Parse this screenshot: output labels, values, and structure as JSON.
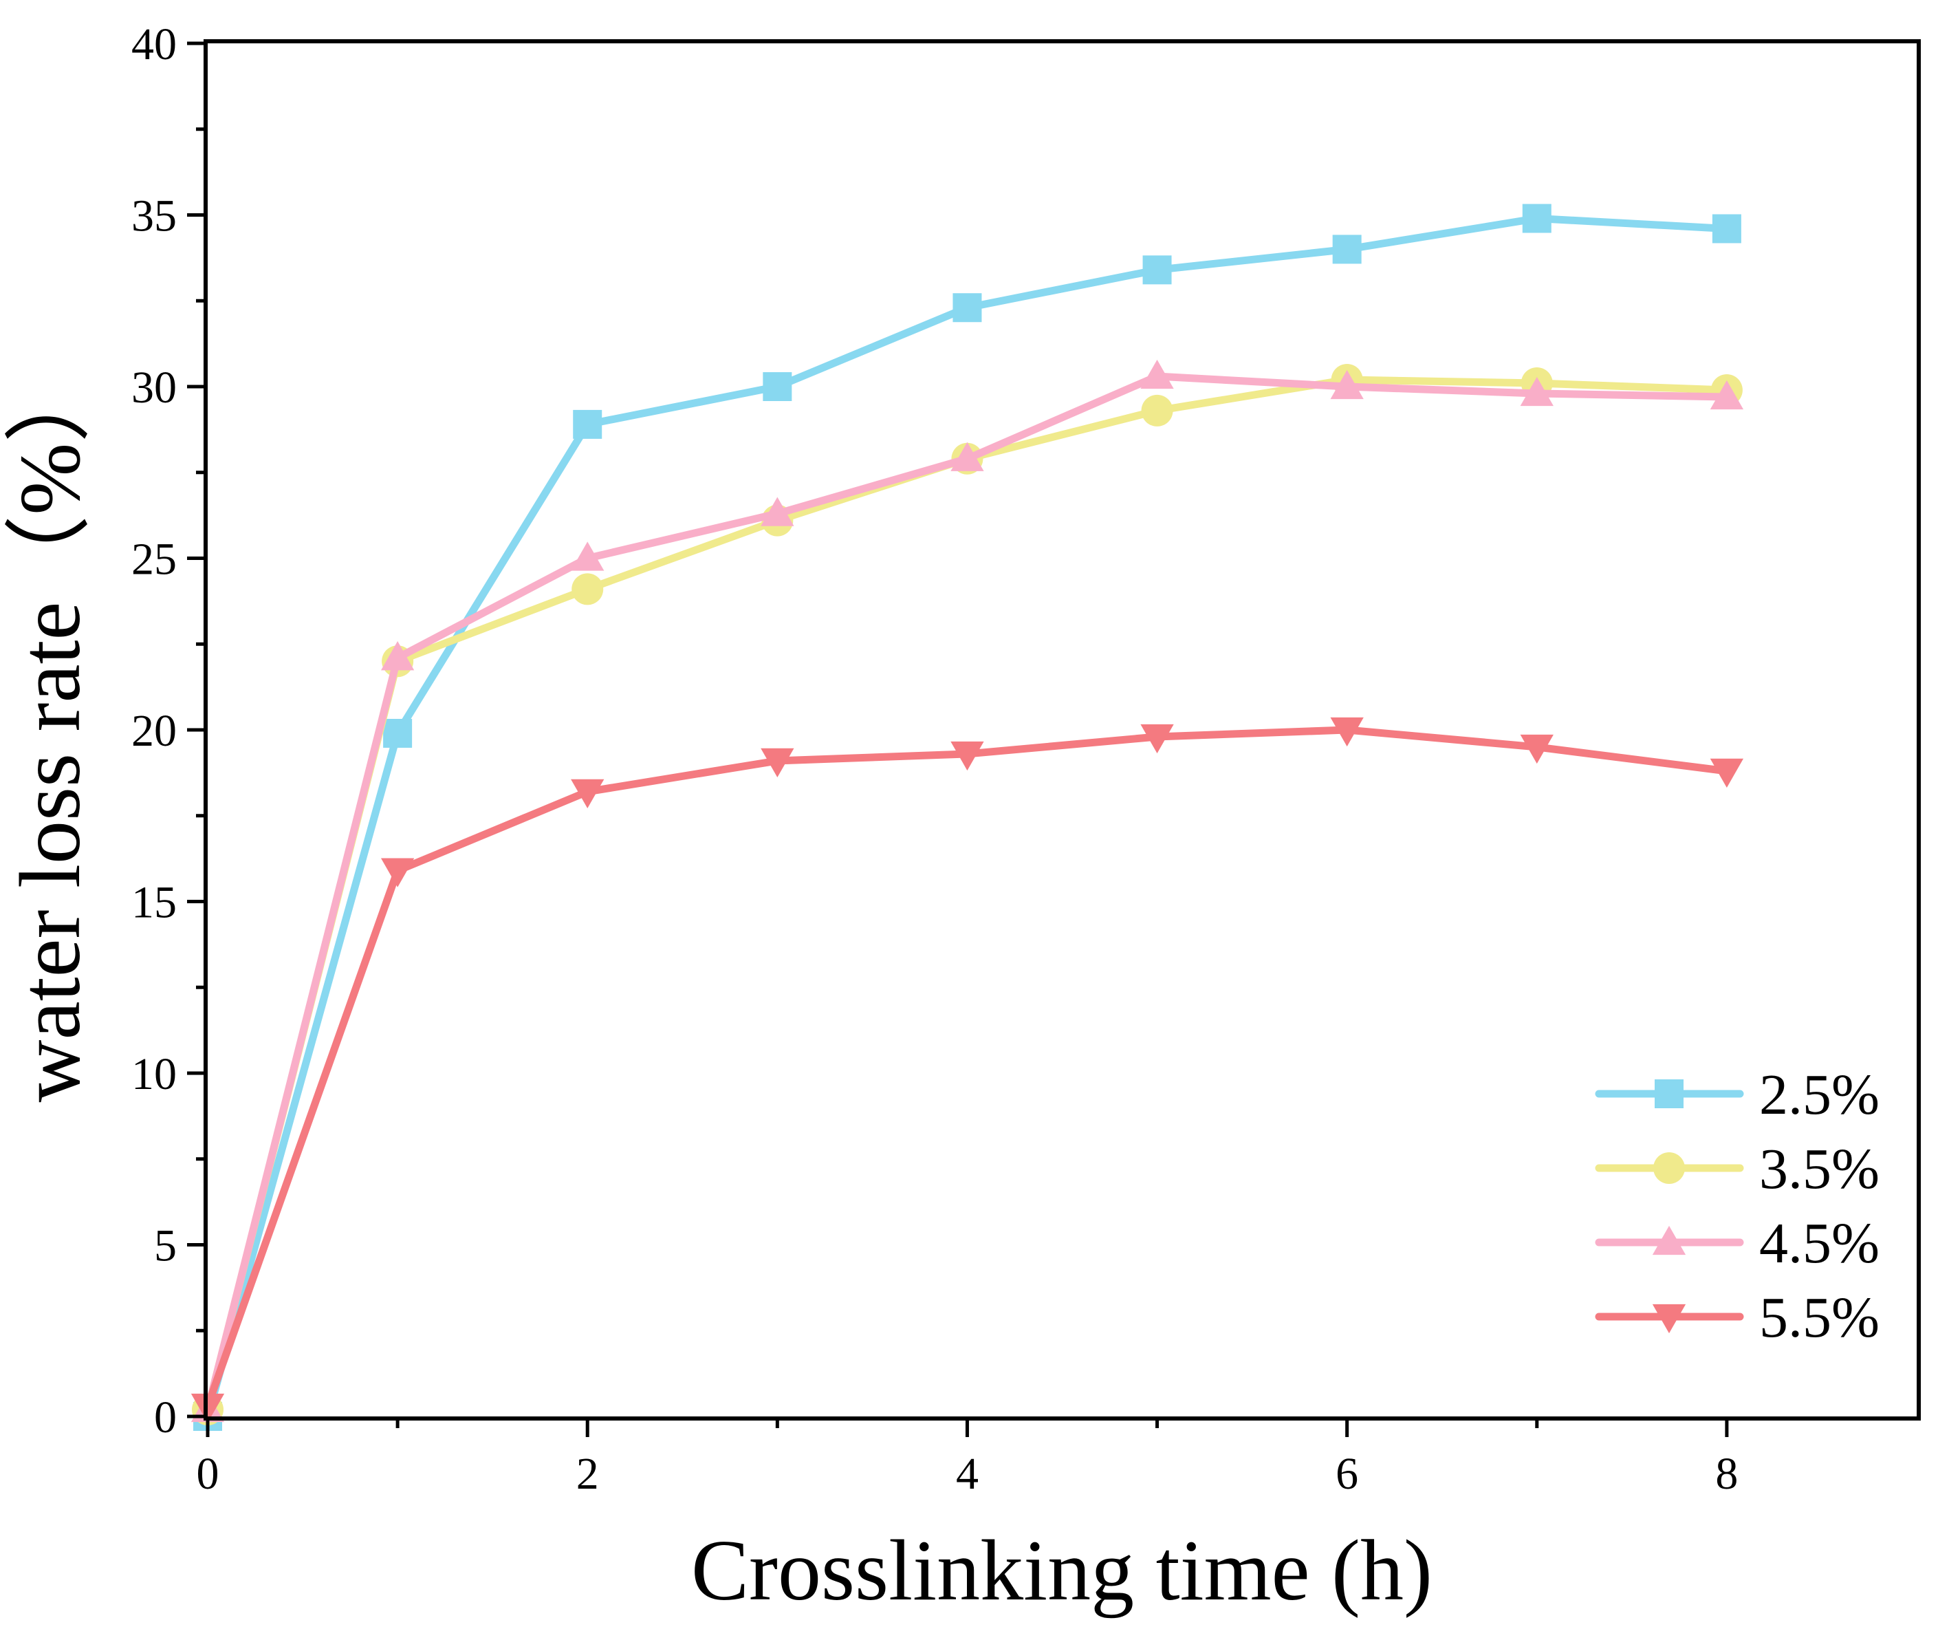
{
  "chart_data": {
    "type": "line",
    "title": "",
    "xlabel": "Crosslinking time (h)",
    "ylabel": "water loss rate（%）",
    "xlim": [
      0,
      9
    ],
    "ylim": [
      0,
      40
    ],
    "x_ticks": [
      0,
      2,
      4,
      6,
      8
    ],
    "y_ticks": [
      0,
      5,
      10,
      15,
      20,
      25,
      30,
      35,
      40
    ],
    "grid": false,
    "legend_position": "bottom-right",
    "x": [
      0,
      1,
      2,
      3,
      4,
      5,
      6,
      7,
      8
    ],
    "series": [
      {
        "name": "2.5%",
        "color": "#88d8f0",
        "marker": "square",
        "values": [
          0,
          19.9,
          28.9,
          30.0,
          32.3,
          33.4,
          34.0,
          34.9,
          34.6
        ]
      },
      {
        "name": "3.5%",
        "color": "#f0ea8c",
        "marker": "circle",
        "values": [
          0.2,
          22.0,
          24.1,
          26.1,
          27.9,
          29.3,
          30.2,
          30.1,
          29.9
        ]
      },
      {
        "name": "4.5%",
        "color": "#f9aec8",
        "marker": "triangle-up",
        "values": [
          0.2,
          22.1,
          25.0,
          26.3,
          27.9,
          30.3,
          30.0,
          29.8,
          29.7
        ]
      },
      {
        "name": "5.5%",
        "color": "#f47a80",
        "marker": "triangle-down",
        "values": [
          0.3,
          15.9,
          18.2,
          19.1,
          19.3,
          19.8,
          20.0,
          19.5,
          18.8
        ]
      }
    ]
  }
}
